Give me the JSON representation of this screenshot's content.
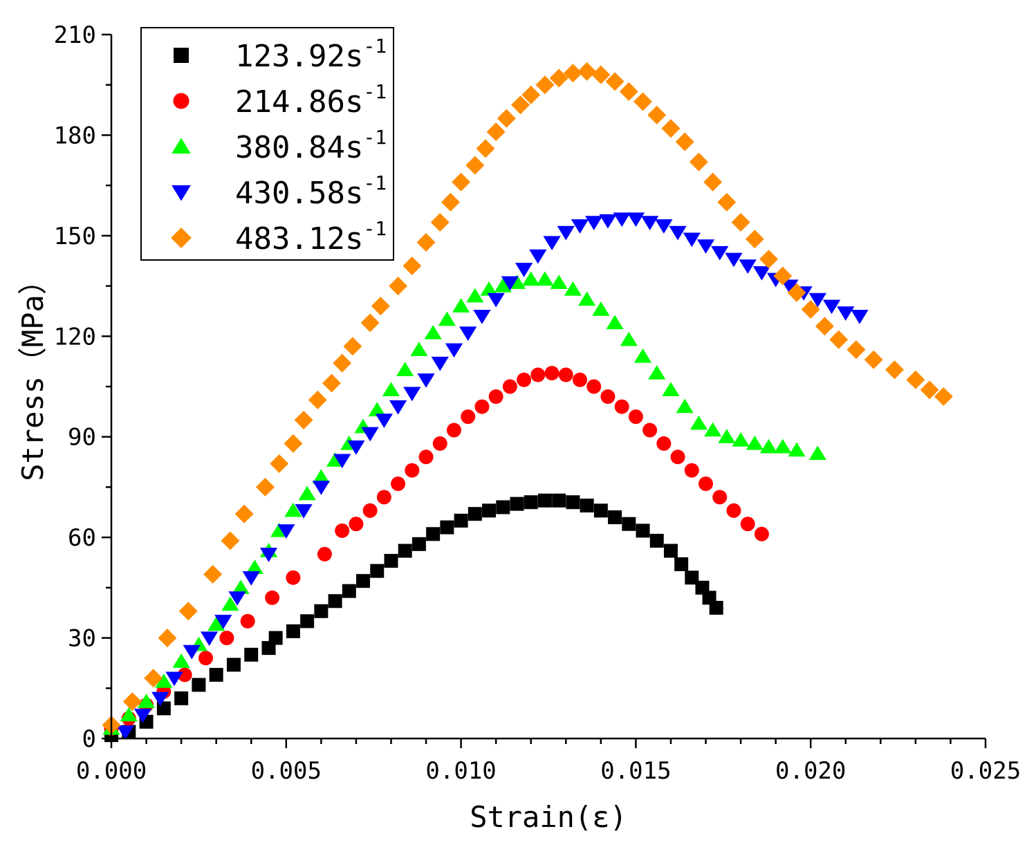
{
  "chart_data": {
    "type": "scatter",
    "title": "",
    "xlabel": "Strain(ε)",
    "ylabel": "Stress（MPa）",
    "xlim": [
      0,
      0.025
    ],
    "ylim": [
      0,
      210
    ],
    "xticks": [
      "0.000",
      "0.005",
      "0.010",
      "0.015",
      "0.020",
      "0.025"
    ],
    "yticks": [
      "0",
      "30",
      "60",
      "90",
      "120",
      "150",
      "180",
      "210"
    ],
    "legend_position": "top-left",
    "series": [
      {
        "name": "123.92s",
        "unit_sup": "-1",
        "marker": "square",
        "color": "#000000",
        "points": [
          [
            0.0,
            1
          ],
          [
            0.0005,
            2
          ],
          [
            0.001,
            5
          ],
          [
            0.0015,
            9
          ],
          [
            0.002,
            12
          ],
          [
            0.0025,
            16
          ],
          [
            0.003,
            19
          ],
          [
            0.0035,
            22
          ],
          [
            0.004,
            25
          ],
          [
            0.0045,
            27
          ],
          [
            0.0047,
            30
          ],
          [
            0.0052,
            32
          ],
          [
            0.0056,
            35
          ],
          [
            0.006,
            38
          ],
          [
            0.0064,
            41
          ],
          [
            0.0068,
            44
          ],
          [
            0.0072,
            47
          ],
          [
            0.0076,
            50
          ],
          [
            0.008,
            53
          ],
          [
            0.0084,
            56
          ],
          [
            0.0088,
            58
          ],
          [
            0.0092,
            61
          ],
          [
            0.0096,
            63
          ],
          [
            0.01,
            65
          ],
          [
            0.0104,
            67
          ],
          [
            0.0108,
            68
          ],
          [
            0.0112,
            69
          ],
          [
            0.0116,
            70
          ],
          [
            0.012,
            70.5
          ],
          [
            0.0124,
            71
          ],
          [
            0.0128,
            71
          ],
          [
            0.0132,
            70.5
          ],
          [
            0.0136,
            69.5
          ],
          [
            0.014,
            68
          ],
          [
            0.0144,
            66
          ],
          [
            0.0148,
            64
          ],
          [
            0.0152,
            62
          ],
          [
            0.0156,
            59
          ],
          [
            0.016,
            56
          ],
          [
            0.0163,
            52
          ],
          [
            0.0166,
            48
          ],
          [
            0.0169,
            45
          ],
          [
            0.0171,
            42
          ],
          [
            0.0173,
            39
          ]
        ]
      },
      {
        "name": "214.86s",
        "unit_sup": "-1",
        "marker": "circle",
        "color": "#ff0000",
        "points": [
          [
            0.0,
            3
          ],
          [
            0.0005,
            6
          ],
          [
            0.001,
            10
          ],
          [
            0.0015,
            14
          ],
          [
            0.0021,
            19
          ],
          [
            0.0027,
            24
          ],
          [
            0.0033,
            30
          ],
          [
            0.0039,
            35
          ],
          [
            0.0046,
            42
          ],
          [
            0.0052,
            48
          ],
          [
            0.0061,
            55
          ],
          [
            0.0066,
            62
          ],
          [
            0.007,
            64
          ],
          [
            0.0074,
            68
          ],
          [
            0.0078,
            72
          ],
          [
            0.0082,
            76
          ],
          [
            0.0086,
            80
          ],
          [
            0.009,
            84
          ],
          [
            0.0094,
            88
          ],
          [
            0.0098,
            92
          ],
          [
            0.0102,
            96
          ],
          [
            0.0106,
            99
          ],
          [
            0.011,
            102
          ],
          [
            0.0114,
            105
          ],
          [
            0.0118,
            107
          ],
          [
            0.0122,
            108.5
          ],
          [
            0.0126,
            109
          ],
          [
            0.013,
            108.5
          ],
          [
            0.0134,
            107
          ],
          [
            0.0138,
            105
          ],
          [
            0.0142,
            102
          ],
          [
            0.0146,
            99
          ],
          [
            0.015,
            96
          ],
          [
            0.0154,
            92
          ],
          [
            0.0158,
            88
          ],
          [
            0.0162,
            84
          ],
          [
            0.0166,
            80
          ],
          [
            0.017,
            76
          ],
          [
            0.0174,
            72
          ],
          [
            0.0178,
            68
          ],
          [
            0.0182,
            64
          ],
          [
            0.0186,
            61
          ]
        ]
      },
      {
        "name": "380.84s",
        "unit_sup": "-1",
        "marker": "triangle-up",
        "color": "#00ff00",
        "points": [
          [
            0.0,
            3
          ],
          [
            0.0005,
            7
          ],
          [
            0.001,
            11
          ],
          [
            0.0015,
            17
          ],
          [
            0.002,
            23
          ],
          [
            0.0025,
            28
          ],
          [
            0.003,
            34
          ],
          [
            0.0034,
            40
          ],
          [
            0.0037,
            45
          ],
          [
            0.0041,
            51
          ],
          [
            0.0045,
            56
          ],
          [
            0.0048,
            62
          ],
          [
            0.0052,
            68
          ],
          [
            0.0056,
            73
          ],
          [
            0.006,
            78
          ],
          [
            0.0064,
            83
          ],
          [
            0.0068,
            88
          ],
          [
            0.0072,
            93
          ],
          [
            0.0076,
            98
          ],
          [
            0.008,
            104
          ],
          [
            0.0084,
            110
          ],
          [
            0.0088,
            116
          ],
          [
            0.0092,
            121
          ],
          [
            0.0096,
            125
          ],
          [
            0.01,
            129
          ],
          [
            0.0104,
            132
          ],
          [
            0.0108,
            134
          ],
          [
            0.0112,
            135
          ],
          [
            0.0116,
            136
          ],
          [
            0.012,
            137
          ],
          [
            0.0124,
            137
          ],
          [
            0.0128,
            136
          ],
          [
            0.0132,
            134
          ],
          [
            0.0136,
            131
          ],
          [
            0.014,
            128
          ],
          [
            0.0144,
            124
          ],
          [
            0.0148,
            119
          ],
          [
            0.0152,
            114
          ],
          [
            0.0156,
            109
          ],
          [
            0.016,
            104
          ],
          [
            0.0164,
            99
          ],
          [
            0.0168,
            94
          ],
          [
            0.0172,
            92
          ],
          [
            0.0176,
            90
          ],
          [
            0.018,
            89
          ],
          [
            0.0184,
            88
          ],
          [
            0.0188,
            87
          ],
          [
            0.0192,
            87
          ],
          [
            0.0196,
            86
          ],
          [
            0.0202,
            85
          ]
        ]
      },
      {
        "name": "430.58s",
        "unit_sup": "-1",
        "marker": "triangle-down",
        "color": "#0000ff",
        "points": [
          [
            0.0004,
            2
          ],
          [
            0.0009,
            7
          ],
          [
            0.0014,
            12
          ],
          [
            0.0018,
            18
          ],
          [
            0.0023,
            26
          ],
          [
            0.0028,
            30
          ],
          [
            0.0032,
            35
          ],
          [
            0.0036,
            42
          ],
          [
            0.004,
            48
          ],
          [
            0.0045,
            55
          ],
          [
            0.005,
            62
          ],
          [
            0.0055,
            68
          ],
          [
            0.006,
            75
          ],
          [
            0.0066,
            83
          ],
          [
            0.007,
            87
          ],
          [
            0.0074,
            91
          ],
          [
            0.0078,
            95
          ],
          [
            0.0082,
            99
          ],
          [
            0.0086,
            103
          ],
          [
            0.009,
            107
          ],
          [
            0.0094,
            112
          ],
          [
            0.0098,
            116
          ],
          [
            0.0102,
            121
          ],
          [
            0.0106,
            126
          ],
          [
            0.011,
            131
          ],
          [
            0.0114,
            136
          ],
          [
            0.0118,
            140
          ],
          [
            0.0122,
            144
          ],
          [
            0.0126,
            148
          ],
          [
            0.013,
            151
          ],
          [
            0.0134,
            153
          ],
          [
            0.0138,
            154
          ],
          [
            0.0142,
            154.5
          ],
          [
            0.0146,
            155
          ],
          [
            0.015,
            155
          ],
          [
            0.0154,
            154
          ],
          [
            0.0158,
            153
          ],
          [
            0.0162,
            151
          ],
          [
            0.0166,
            149
          ],
          [
            0.017,
            147
          ],
          [
            0.0174,
            145
          ],
          [
            0.0178,
            143
          ],
          [
            0.0182,
            141
          ],
          [
            0.0186,
            139
          ],
          [
            0.019,
            137
          ],
          [
            0.0194,
            135
          ],
          [
            0.0198,
            133
          ],
          [
            0.0202,
            131
          ],
          [
            0.0206,
            129
          ],
          [
            0.021,
            127
          ],
          [
            0.0214,
            126
          ]
        ]
      },
      {
        "name": "483.12s",
        "unit_sup": "-1",
        "marker": "diamond",
        "color": "#ff8c00",
        "points": [
          [
            0.0,
            4
          ],
          [
            0.0006,
            11
          ],
          [
            0.0012,
            18
          ],
          [
            0.0016,
            30
          ],
          [
            0.0022,
            38
          ],
          [
            0.0029,
            49
          ],
          [
            0.0034,
            59
          ],
          [
            0.0038,
            67
          ],
          [
            0.0044,
            75
          ],
          [
            0.0048,
            82
          ],
          [
            0.0052,
            88
          ],
          [
            0.0055,
            95
          ],
          [
            0.0059,
            101
          ],
          [
            0.0063,
            106
          ],
          [
            0.0066,
            112
          ],
          [
            0.0069,
            117
          ],
          [
            0.0074,
            124
          ],
          [
            0.0077,
            129
          ],
          [
            0.0082,
            135
          ],
          [
            0.0086,
            141
          ],
          [
            0.009,
            148
          ],
          [
            0.0094,
            154
          ],
          [
            0.0097,
            160
          ],
          [
            0.01,
            166
          ],
          [
            0.0104,
            171
          ],
          [
            0.0107,
            176
          ],
          [
            0.011,
            181
          ],
          [
            0.0113,
            185
          ],
          [
            0.0117,
            189
          ],
          [
            0.012,
            192
          ],
          [
            0.0124,
            195
          ],
          [
            0.0128,
            197
          ],
          [
            0.0132,
            198.5
          ],
          [
            0.0136,
            199
          ],
          [
            0.014,
            198
          ],
          [
            0.0144,
            196
          ],
          [
            0.0148,
            193
          ],
          [
            0.0152,
            190
          ],
          [
            0.0156,
            186
          ],
          [
            0.016,
            182
          ],
          [
            0.0164,
            178
          ],
          [
            0.0168,
            172
          ],
          [
            0.0172,
            166
          ],
          [
            0.0176,
            160
          ],
          [
            0.018,
            154
          ],
          [
            0.0184,
            149
          ],
          [
            0.0188,
            143
          ],
          [
            0.0192,
            138
          ],
          [
            0.0196,
            133
          ],
          [
            0.02,
            128
          ],
          [
            0.0204,
            123
          ],
          [
            0.0208,
            119
          ],
          [
            0.0213,
            116
          ],
          [
            0.0218,
            113
          ],
          [
            0.0224,
            110
          ],
          [
            0.023,
            107
          ],
          [
            0.0234,
            104
          ],
          [
            0.0238,
            102
          ]
        ]
      }
    ]
  }
}
